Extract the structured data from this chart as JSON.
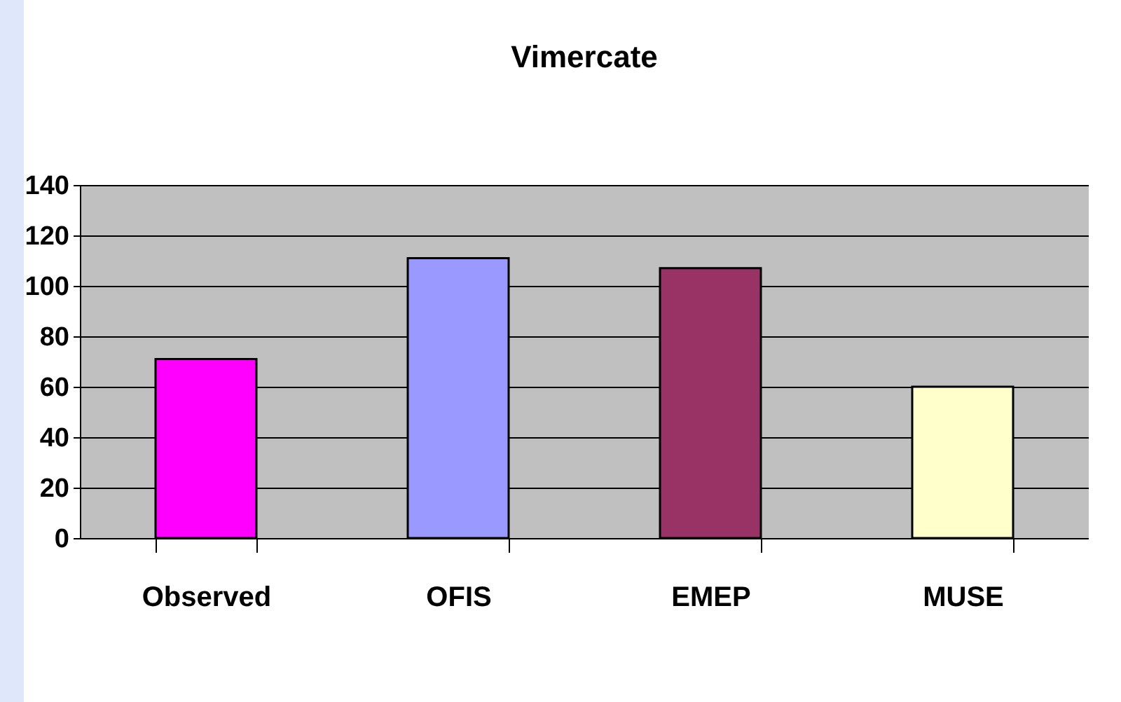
{
  "chart_data": {
    "type": "bar",
    "title": "Vimercate",
    "categories": [
      "Observed",
      "OFIS",
      "EMEP",
      "MUSE"
    ],
    "values": [
      71,
      111,
      107,
      60
    ],
    "colors": [
      "#ff00ff",
      "#9999ff",
      "#993366",
      "#ffffcc"
    ],
    "ylim": [
      0,
      140
    ],
    "yticks": [
      0,
      20,
      40,
      60,
      80,
      100,
      120,
      140
    ],
    "grid": "y",
    "legend": false
  }
}
